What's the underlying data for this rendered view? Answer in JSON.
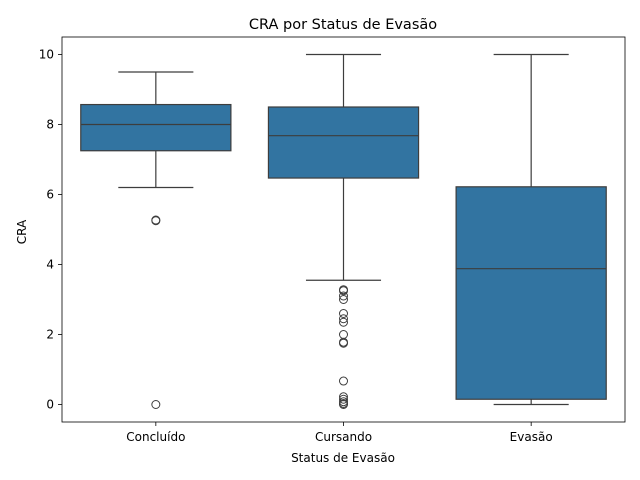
{
  "chart_data": {
    "type": "box",
    "title": "CRA por Status de Evasão",
    "xlabel": "Status de Evasão",
    "ylabel": "CRA",
    "ylim": [
      -0.5,
      10.5
    ],
    "yticks": [
      "0",
      "2",
      "4",
      "6",
      "8",
      "10"
    ],
    "categories": [
      "Concluído",
      "Cursando",
      "Evasão"
    ],
    "colors": {
      "box": "#3274a1",
      "line": "#3d3d3d",
      "outlier": "#3d3d3d"
    },
    "boxes": [
      {
        "category": "Concluído",
        "whisker_low": 6.2,
        "q1": 7.25,
        "median": 8.0,
        "q3": 8.57,
        "whisker_high": 9.5,
        "outliers": [
          5.25,
          5.27,
          0.0
        ]
      },
      {
        "category": "Cursando",
        "whisker_low": 3.55,
        "q1": 6.47,
        "median": 7.68,
        "q3": 8.5,
        "whisker_high": 10.0,
        "outliers": [
          3.28,
          3.25,
          3.1,
          3.0,
          2.6,
          2.45,
          2.35,
          2.0,
          1.78,
          1.75,
          0.67,
          0.22,
          0.15,
          0.08,
          0.03,
          0.0
        ]
      },
      {
        "category": "Evasão",
        "whisker_low": 0.0,
        "q1": 0.15,
        "median": 3.88,
        "q3": 6.22,
        "whisker_high": 10.0,
        "outliers": []
      }
    ]
  }
}
